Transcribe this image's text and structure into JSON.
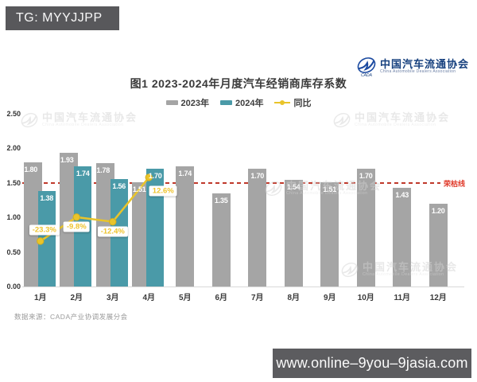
{
  "top_banner": {
    "text": "TG: MYYJJPP"
  },
  "bottom_banner": {
    "text": "www.online–9you–9jasia.com"
  },
  "logo": {
    "name_cn": "中国汽车流通协会",
    "name_en": "China Automobile Dealers Association",
    "abbr": "CADA"
  },
  "watermark": {
    "name_cn": "中国汽车流通协会",
    "name_en": "China Automobile Dealers Association"
  },
  "title": "图1  2023-2024年月度汽车经销商库存系数",
  "source": "数据来源：CADA产业协调发展分会",
  "colors": {
    "bar_2023": "#a5a5a5",
    "bar_2024": "#4a9aa8",
    "yoy_line": "#e9c42a",
    "yoy_label_text": "#eec32d",
    "threshold_line": "#c0392b",
    "threshold_label": "#e03a2a",
    "banner_bg": "#58585b"
  },
  "chart_data": {
    "type": "combo",
    "categories": [
      "1月",
      "2月",
      "3月",
      "4月",
      "5月",
      "6月",
      "7月",
      "8月",
      "9月",
      "10月",
      "11月",
      "12月"
    ],
    "series": [
      {
        "name": "2023年",
        "type": "bar",
        "color": "#a5a5a5",
        "values": [
          1.8,
          1.93,
          1.78,
          1.51,
          1.74,
          1.35,
          1.7,
          1.54,
          1.51,
          1.7,
          1.43,
          1.2
        ]
      },
      {
        "name": "2024年",
        "type": "bar",
        "color": "#4a9aa8",
        "values": [
          1.38,
          1.74,
          1.56,
          1.7,
          null,
          null,
          null,
          null,
          null,
          null,
          null,
          null
        ]
      },
      {
        "name": "同比",
        "type": "line",
        "color": "#e9c42a",
        "unit": "%",
        "values": [
          -23.3,
          -9.8,
          -12.4,
          12.6,
          null,
          null,
          null,
          null,
          null,
          null,
          null,
          null
        ],
        "point_labels": [
          "-23.3%",
          "-9.8%",
          "-12.4%",
          "12.6%"
        ]
      }
    ],
    "ylim": [
      0,
      2.5
    ],
    "yticks": [
      "0.00",
      "0.50",
      "1.00",
      "1.50",
      "2.00",
      "2.50"
    ],
    "threshold_line": {
      "value": 1.5,
      "label": "荣枯线",
      "style": "dashed",
      "color": "#c0392b"
    },
    "legend_position": "top",
    "grid": false
  }
}
